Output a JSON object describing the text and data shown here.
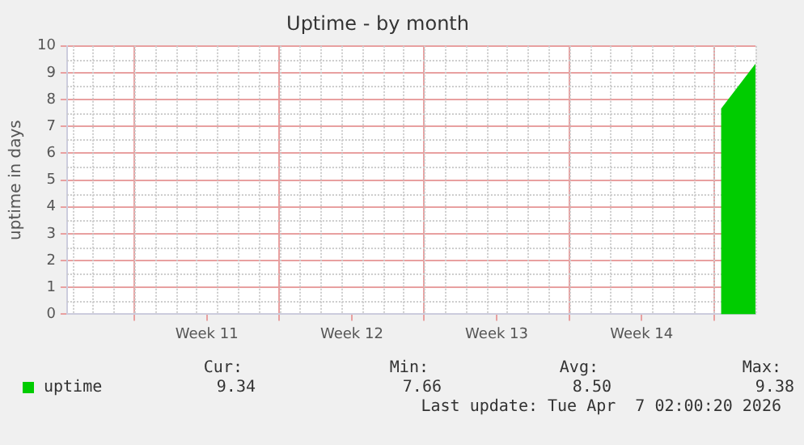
{
  "chart_data": {
    "type": "area",
    "title": "Uptime - by month",
    "ylabel": "uptime in days",
    "x": [
      "2026-04-06T08:00",
      "2026-04-08T00:00"
    ],
    "series": [
      {
        "name": "uptime",
        "color": "#00cc00",
        "values": [
          7.66,
          9.34
        ]
      }
    ],
    "xlim": [
      "2026-03-05T18:00",
      "2026-04-08T00:00"
    ],
    "xticks": [
      {
        "value": "2026-03-09",
        "label": null
      },
      {
        "value": "2026-03-12T12:00",
        "label": "Week 11"
      },
      {
        "value": "2026-03-16",
        "label": null
      },
      {
        "value": "2026-03-19T12:00",
        "label": "Week 12"
      },
      {
        "value": "2026-03-23",
        "label": null
      },
      {
        "value": "2026-03-26T12:00",
        "label": "Week 13"
      },
      {
        "value": "2026-03-30",
        "label": null
      },
      {
        "value": "2026-04-02T12:00",
        "label": "Week 14"
      },
      {
        "value": "2026-04-06",
        "label": null
      }
    ],
    "ylim": [
      0,
      10
    ],
    "yticks": [
      0,
      1,
      2,
      3,
      4,
      5,
      6,
      7,
      8,
      9,
      10
    ],
    "grid": true,
    "legend": "bottom",
    "annotations": [
      "Cur:",
      "Min:",
      "Avg:",
      "Max:",
      "9.34",
      "7.66",
      "8.50",
      "9.38",
      "Last update: Tue Apr  7 02:00:20 2026"
    ]
  }
}
